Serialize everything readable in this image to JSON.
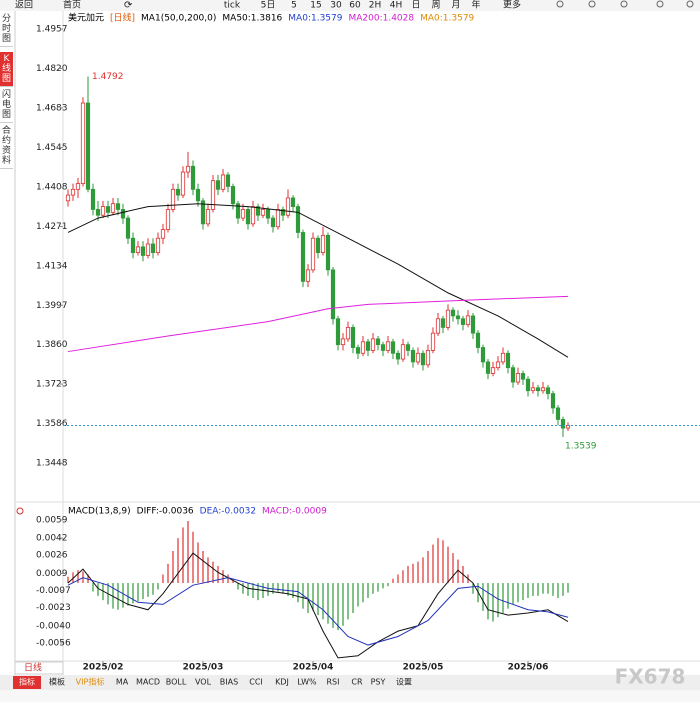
{
  "toolbar": [
    "返回",
    "首页",
    "5日",
    "tick",
    "5",
    "15",
    "30",
    "60",
    "2H",
    "4H",
    "日",
    "周",
    "月",
    "年",
    "更多"
  ],
  "sidebar": [
    "分时图",
    "K线图",
    "闪电图",
    "合约资料"
  ],
  "sidebar_active": 1,
  "chart_data": [
    {
      "type": "candlestick",
      "legend": [
        {
          "text": "美元加元",
          "color": "#000000"
        },
        {
          "text": "[日线]",
          "color": "#e05a00"
        },
        {
          "text": "MA1(50,0,200,0)",
          "color": "#000000"
        },
        {
          "text": "MA50:1.3816",
          "color": "#000000"
        },
        {
          "text": "MA0:1.3579",
          "color": "#1f3fcf"
        },
        {
          "text": "MA200:1.4028",
          "color": "#d020d0"
        },
        {
          "text": "MA0:1.3579",
          "color": "#e08a00"
        }
      ],
      "ylim": [
        1.332,
        1.5006
      ],
      "yticks": [
        1.4957,
        {
          "value": 1.482,
          "label": "1.4820"
        },
        1.4683,
        1.4545,
        1.4408,
        1.4271,
        1.4134,
        1.3997,
        {
          "value": 1.386,
          "label": "1.3860"
        },
        1.3723,
        1.3586,
        1.3448
      ],
      "up_color": "#e03030",
      "down_color": "#2e9a3a",
      "last_line_color": "#3a9ad0",
      "candles": [
        [
          1.436,
          1.44,
          1.434,
          1.438
        ],
        [
          1.438,
          1.442,
          1.436,
          1.44
        ],
        [
          1.44,
          1.444,
          1.437,
          1.442
        ],
        [
          1.442,
          1.472,
          1.441,
          1.47
        ],
        [
          1.47,
          1.4792,
          1.439,
          1.44
        ],
        [
          1.44,
          1.442,
          1.431,
          1.433
        ],
        [
          1.433,
          1.436,
          1.429,
          1.431
        ],
        [
          1.431,
          1.436,
          1.43,
          1.434
        ],
        [
          1.434,
          1.436,
          1.43,
          1.432
        ],
        [
          1.432,
          1.437,
          1.431,
          1.435
        ],
        [
          1.435,
          1.437,
          1.431,
          1.433
        ],
        [
          1.433,
          1.435,
          1.428,
          1.43
        ],
        [
          1.43,
          1.431,
          1.421,
          1.423
        ],
        [
          1.423,
          1.425,
          1.416,
          1.418
        ],
        [
          1.418,
          1.422,
          1.417,
          1.42
        ],
        [
          1.42,
          1.422,
          1.415,
          1.417
        ],
        [
          1.417,
          1.423,
          1.416,
          1.421
        ],
        [
          1.421,
          1.423,
          1.416,
          1.418
        ],
        [
          1.418,
          1.425,
          1.417,
          1.423
        ],
        [
          1.423,
          1.428,
          1.421,
          1.426
        ],
        [
          1.426,
          1.435,
          1.425,
          1.433
        ],
        [
          1.433,
          1.442,
          1.432,
          1.44
        ],
        [
          1.44,
          1.442,
          1.436,
          1.438
        ],
        [
          1.438,
          1.448,
          1.437,
          1.446
        ],
        [
          1.446,
          1.453,
          1.444,
          1.448
        ],
        [
          1.448,
          1.45,
          1.438,
          1.44
        ],
        [
          1.44,
          1.442,
          1.434,
          1.436
        ],
        [
          1.436,
          1.437,
          1.426,
          1.428
        ],
        [
          1.428,
          1.435,
          1.427,
          1.433
        ],
        [
          1.433,
          1.445,
          1.432,
          1.443
        ],
        [
          1.443,
          1.445,
          1.438,
          1.44
        ],
        [
          1.44,
          1.447,
          1.439,
          1.445
        ],
        [
          1.445,
          1.446,
          1.439,
          1.441
        ],
        [
          1.441,
          1.442,
          1.433,
          1.435
        ],
        [
          1.435,
          1.436,
          1.428,
          1.43
        ],
        [
          1.43,
          1.435,
          1.429,
          1.433
        ],
        [
          1.433,
          1.434,
          1.426,
          1.428
        ],
        [
          1.428,
          1.436,
          1.427,
          1.434
        ],
        [
          1.434,
          1.435,
          1.429,
          1.431
        ],
        [
          1.431,
          1.435,
          1.43,
          1.433
        ],
        [
          1.433,
          1.434,
          1.428,
          1.43
        ],
        [
          1.43,
          1.431,
          1.425,
          1.427
        ],
        [
          1.427,
          1.435,
          1.426,
          1.433
        ],
        [
          1.433,
          1.434,
          1.429,
          1.431
        ],
        [
          1.431,
          1.44,
          1.43,
          1.437
        ],
        [
          1.437,
          1.438,
          1.432,
          1.434
        ],
        [
          1.434,
          1.435,
          1.423,
          1.425
        ],
        [
          1.425,
          1.426,
          1.406,
          1.408
        ],
        [
          1.408,
          1.414,
          1.406,
          1.412
        ],
        [
          1.412,
          1.425,
          1.411,
          1.423
        ],
        [
          1.423,
          1.424,
          1.416,
          1.418
        ],
        [
          1.418,
          1.427,
          1.417,
          1.424
        ],
        [
          1.424,
          1.425,
          1.41,
          1.412
        ],
        [
          1.412,
          1.413,
          1.393,
          1.395
        ],
        [
          1.395,
          1.396,
          1.384,
          1.386
        ],
        [
          1.386,
          1.39,
          1.384,
          1.388
        ],
        [
          1.388,
          1.394,
          1.387,
          1.392
        ],
        [
          1.392,
          1.393,
          1.383,
          1.385
        ],
        [
          1.385,
          1.386,
          1.381,
          1.383
        ],
        [
          1.383,
          1.389,
          1.382,
          1.387
        ],
        [
          1.387,
          1.388,
          1.382,
          1.384
        ],
        [
          1.384,
          1.39,
          1.383,
          1.388
        ],
        [
          1.388,
          1.389,
          1.384,
          1.386
        ],
        [
          1.386,
          1.387,
          1.382,
          1.384
        ],
        [
          1.384,
          1.389,
          1.383,
          1.387
        ],
        [
          1.387,
          1.388,
          1.381,
          1.383
        ],
        [
          1.383,
          1.384,
          1.379,
          1.381
        ],
        [
          1.381,
          1.388,
          1.38,
          1.386
        ],
        [
          1.386,
          1.387,
          1.382,
          1.384
        ],
        [
          1.384,
          1.385,
          1.378,
          1.38
        ],
        [
          1.38,
          1.385,
          1.379,
          1.383
        ],
        [
          1.383,
          1.384,
          1.377,
          1.379
        ],
        [
          1.379,
          1.386,
          1.378,
          1.384
        ],
        [
          1.384,
          1.392,
          1.383,
          1.39
        ],
        [
          1.39,
          1.397,
          1.389,
          1.395
        ],
        [
          1.395,
          1.396,
          1.39,
          1.392
        ],
        [
          1.392,
          1.4,
          1.391,
          1.398
        ],
        [
          1.398,
          1.399,
          1.394,
          1.396
        ],
        [
          1.396,
          1.398,
          1.393,
          1.395
        ],
        [
          1.395,
          1.396,
          1.391,
          1.393
        ],
        [
          1.393,
          1.398,
          1.392,
          1.396
        ],
        [
          1.396,
          1.397,
          1.388,
          1.39
        ],
        [
          1.39,
          1.391,
          1.383,
          1.385
        ],
        [
          1.385,
          1.386,
          1.378,
          1.38
        ],
        [
          1.38,
          1.381,
          1.374,
          1.376
        ],
        [
          1.376,
          1.38,
          1.375,
          1.378
        ],
        [
          1.378,
          1.382,
          1.377,
          1.38
        ],
        [
          1.38,
          1.385,
          1.379,
          1.383
        ],
        [
          1.383,
          1.384,
          1.376,
          1.378
        ],
        [
          1.378,
          1.379,
          1.371,
          1.373
        ],
        [
          1.373,
          1.378,
          1.372,
          1.376
        ],
        [
          1.376,
          1.377,
          1.372,
          1.374
        ],
        [
          1.374,
          1.375,
          1.368,
          1.37
        ],
        [
          1.37,
          1.373,
          1.369,
          1.371
        ],
        [
          1.371,
          1.372,
          1.368,
          1.37
        ],
        [
          1.37,
          1.373,
          1.369,
          1.371
        ],
        [
          1.371,
          1.372,
          1.367,
          1.369
        ],
        [
          1.369,
          1.37,
          1.362,
          1.364
        ],
        [
          1.364,
          1.365,
          1.358,
          1.36
        ],
        [
          1.36,
          1.361,
          1.3539,
          1.357
        ],
        [
          1.357,
          1.359,
          1.356,
          1.3579
        ]
      ],
      "lines": [
        {
          "color": "#111111",
          "x": [
            0,
            6,
            16,
            26,
            36,
            46,
            56,
            66,
            76,
            86,
            94,
            100
          ],
          "values": [
            1.425,
            1.43,
            1.434,
            1.435,
            1.434,
            1.432,
            1.423,
            1.414,
            1.404,
            1.396,
            1.388,
            1.3816
          ]
        },
        {
          "color": "#e020e0",
          "x": [
            0,
            20,
            40,
            52,
            60,
            80,
            100
          ],
          "values": [
            1.3836,
            1.389,
            1.394,
            1.3985,
            1.4,
            1.4015,
            1.4028
          ]
        }
      ],
      "month_ticks": [
        {
          "value": 7,
          "label": "2025/02"
        },
        {
          "value": 27,
          "label": "2025/03"
        },
        {
          "value": 49,
          "label": "2025/04"
        },
        {
          "value": 71,
          "label": "2025/05"
        },
        {
          "value": 92,
          "label": "2025/06"
        }
      ]
    },
    {
      "type": "macd",
      "legend": [
        {
          "text": "MACD(13,8,9)",
          "color": "#000000"
        },
        {
          "text": "DIFF:-0.0036",
          "color": "#000000"
        },
        {
          "text": "DEA:-0.0032",
          "color": "#1f3fcf"
        },
        {
          "text": "MACD:-0.0009",
          "color": "#d020d0"
        }
      ],
      "ylim": [
        -0.0072,
        0.0073
      ],
      "yticks": [
        0.0059,
        0.0042,
        0.0026,
        0.0009,
        -0.0007,
        -0.0023,
        {
          "value": -0.004,
          "label": "-0.0040"
        },
        -0.0056
      ],
      "up_color": "#e03030",
      "down_color": "#2e9a3a",
      "histogram": [
        0.0006,
        0.001,
        0.0012,
        0.0011,
        0.0008,
        -0.0008,
        -0.0012,
        -0.0016,
        -0.002,
        -0.0024,
        -0.0025,
        -0.0023,
        -0.0021,
        -0.0019,
        -0.0017,
        -0.0015,
        -0.0013,
        -0.0011,
        -0.0006,
        0.0008,
        0.0018,
        0.003,
        0.0042,
        0.0052,
        0.0058,
        0.0048,
        0.0038,
        0.003,
        0.0024,
        0.002,
        0.0016,
        0.0012,
        0.0008,
        0.0004,
        -0.0006,
        -0.001,
        -0.0012,
        -0.0014,
        -0.0016,
        -0.0014,
        -0.0012,
        -0.001,
        -0.0008,
        -0.001,
        -0.0012,
        -0.0014,
        -0.0018,
        -0.0024,
        -0.0028,
        -0.0026,
        -0.003,
        -0.0034,
        -0.0038,
        -0.0042,
        -0.0044,
        -0.004,
        -0.0034,
        -0.0028,
        -0.0022,
        -0.0018,
        -0.0014,
        -0.001,
        -0.0008,
        -0.0005,
        -0.0003,
        0.0004,
        0.0008,
        0.0012,
        0.0016,
        0.0018,
        0.002,
        0.0024,
        0.003,
        0.0036,
        0.0042,
        0.004,
        0.0034,
        0.0028,
        0.0022,
        0.0016,
        0.0008,
        -0.001,
        -0.0018,
        -0.0026,
        -0.0034,
        -0.0036,
        -0.0032,
        -0.0028,
        -0.0024,
        -0.002,
        -0.0018,
        -0.0016,
        -0.0014,
        -0.0012,
        -0.0012,
        -0.001,
        -0.001,
        -0.0012,
        -0.0014,
        -0.0012,
        -0.0009
      ],
      "lines": [
        {
          "color": "#111111",
          "x": [
            0,
            3,
            6,
            12,
            16,
            19,
            25,
            30,
            36,
            44,
            48,
            51,
            54,
            58,
            62,
            66,
            70,
            74,
            78,
            81,
            84,
            88,
            92,
            96,
            100
          ],
          "values": [
            0,
            0.0013,
            -0.0005,
            -0.002,
            -0.0025,
            -0.001,
            0.0028,
            0.001,
            -0.0005,
            -0.001,
            -0.0015,
            -0.0045,
            -0.007,
            -0.0068,
            -0.0055,
            -0.0045,
            -0.004,
            -0.001,
            0.0012,
            0,
            -0.0025,
            -0.003,
            -0.0028,
            -0.0025,
            -0.0036
          ]
        },
        {
          "color": "#2233bb",
          "x": [
            0,
            3,
            8,
            14,
            19,
            25,
            32,
            40,
            46,
            51,
            56,
            60,
            66,
            72,
            78,
            82,
            86,
            92,
            96,
            100
          ],
          "values": [
            -0.0002,
            0.0005,
            -0.0002,
            -0.0018,
            -0.002,
            -0.0002,
            0.0005,
            -0.0005,
            -0.0008,
            -0.0025,
            -0.005,
            -0.0058,
            -0.005,
            -0.0035,
            -0.0005,
            -0.0003,
            -0.0015,
            -0.0025,
            -0.0027,
            -0.0032
          ]
        }
      ]
    }
  ],
  "period_select": "日线",
  "tabs": [
    "指标",
    "模板",
    "VIP指标",
    "MA",
    "MACD",
    "BOLL",
    "VOL",
    "BIAS",
    "CCI",
    "KDJ",
    "LW%",
    "RSI",
    "CR",
    "PSY",
    "设置"
  ],
  "tab_active": 0,
  "watermark": "FX678"
}
